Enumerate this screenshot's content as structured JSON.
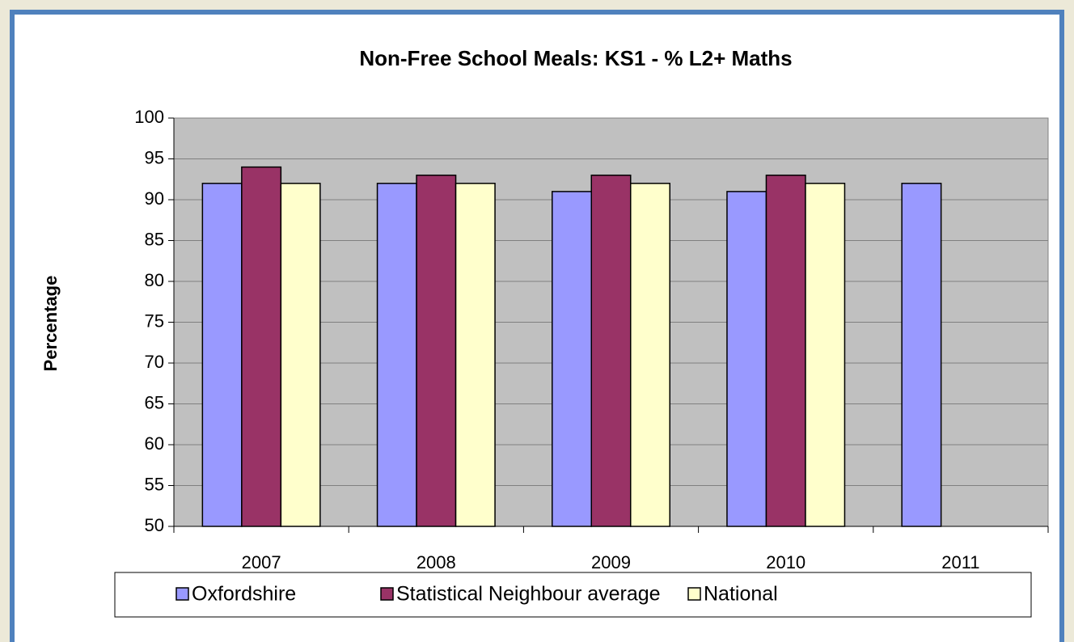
{
  "chart_data": {
    "type": "bar",
    "title": "Non-Free School Meals: KS1 - % L2+ Maths",
    "y_label": "Percentage",
    "categories": [
      "2007",
      "2008",
      "2009",
      "2010",
      "2011"
    ],
    "series": [
      {
        "name": "Oxfordshire",
        "color": "#9999ff",
        "values": [
          92,
          92,
          91,
          91,
          92
        ]
      },
      {
        "name": "Statistical Neighbour average",
        "color": "#993366",
        "values": [
          94,
          93,
          93,
          93,
          null
        ]
      },
      {
        "name": "National",
        "color": "#ffffcc",
        "values": [
          92,
          92,
          92,
          92,
          null
        ]
      }
    ],
    "ylim": [
      50,
      100
    ],
    "yticks": [
      50,
      55,
      60,
      65,
      70,
      75,
      80,
      85,
      90,
      95,
      100
    ],
    "grid": true,
    "legend": "bottom"
  }
}
